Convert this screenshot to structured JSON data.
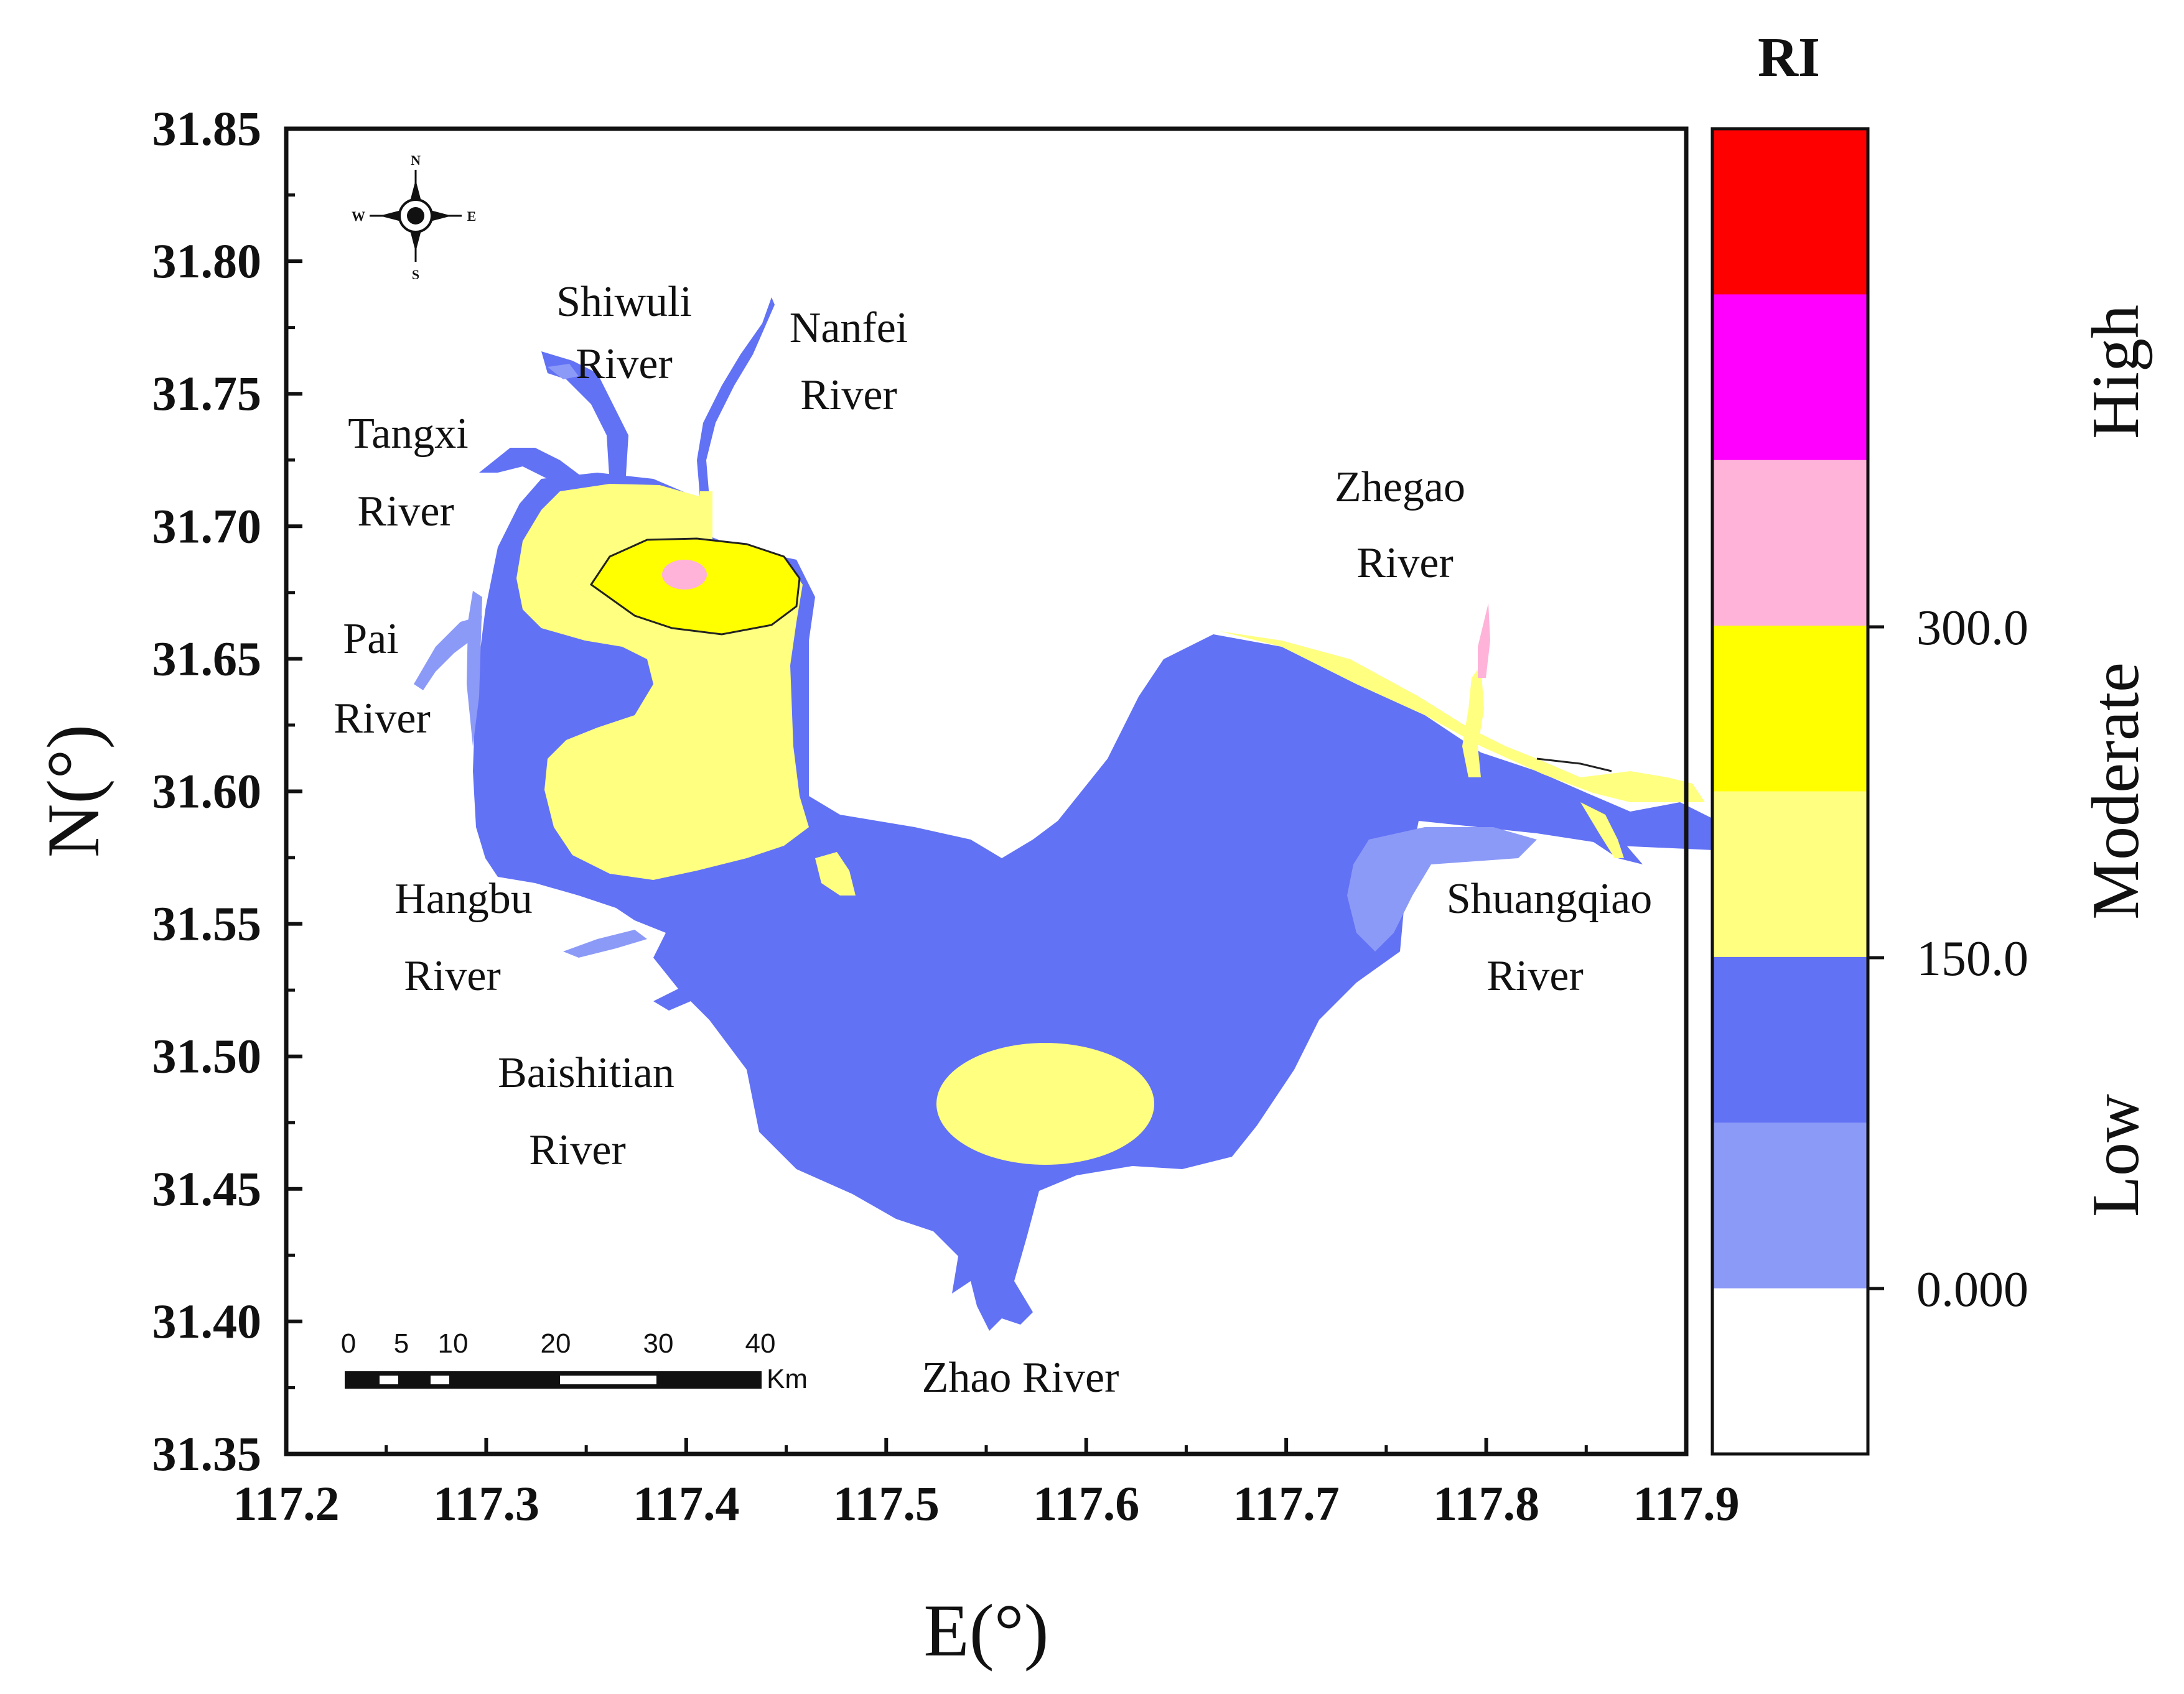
{
  "map": {
    "title": "RI",
    "x_axis": {
      "label": "E(°)",
      "ticks": [
        "117.2",
        "117.3",
        "117.4",
        "117.5",
        "117.6",
        "117.7",
        "117.8",
        "117.9"
      ]
    },
    "y_axis": {
      "label": "N(°)",
      "ticks": [
        "31.85",
        "31.80",
        "31.75",
        "31.70",
        "31.65",
        "31.60",
        "31.55",
        "31.50",
        "31.45",
        "31.40",
        "31.35"
      ]
    },
    "compass": {
      "n": "N",
      "s": "S",
      "e": "E",
      "w": "W"
    },
    "scale_bar": {
      "ticks": [
        "0",
        "5",
        "10",
        "20",
        "30",
        "40"
      ],
      "unit": "Km"
    },
    "rivers": [
      {
        "id": "shiwuli",
        "line1": "Shiwuli",
        "line2": "River"
      },
      {
        "id": "nanfei",
        "line1": "Nanfei",
        "line2": "River"
      },
      {
        "id": "tangxi",
        "line1": "Tangxi",
        "line2": "River"
      },
      {
        "id": "pai",
        "line1": "Pai",
        "line2": "River"
      },
      {
        "id": "zhegao",
        "line1": "Zhegao",
        "line2": "River"
      },
      {
        "id": "hangbu",
        "line1": "Hangbu",
        "line2": "River"
      },
      {
        "id": "shuangqiao",
        "line1": "Shuangqiao",
        "line2": "River"
      },
      {
        "id": "baishitian",
        "line1": "Baishitian",
        "line2": "River"
      },
      {
        "id": "zhao",
        "line1": "Zhao River",
        "line2": ""
      }
    ]
  },
  "legend": {
    "title": "RI",
    "colors": [
      "#ff0000",
      "#ff00ff",
      "#ffb3d9",
      "#ffff00",
      "#ffff80",
      "#6272f5",
      "#8c9af7",
      "#ffffff"
    ],
    "ticks": [
      "300.0",
      "150.0",
      "0.000"
    ],
    "classes": [
      "High",
      "Moderate",
      "Low"
    ]
  },
  "palette": {
    "low_dark": "#6272f5",
    "low_light": "#8c9af7",
    "moderate_light": "#ffff80",
    "moderate": "#ffff00",
    "pink": "#ffb3d9"
  }
}
